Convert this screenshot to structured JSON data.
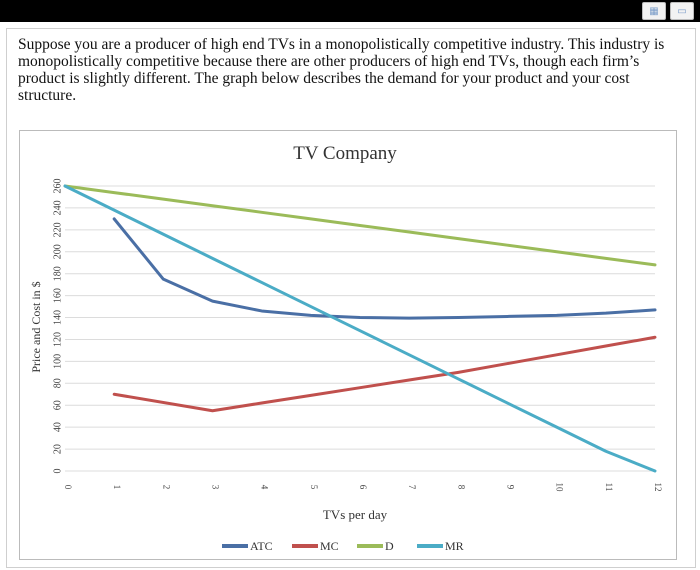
{
  "question": {
    "text": "Suppose you are a producer of high end TVs in a monopolistically competitive industry. This industry is monopolistically competitive because there are other producers of high end TVs, though each firm’s product is slightly different. The graph below describes the demand for your product and your cost structure."
  },
  "toolbar": {
    "icons": [
      "view-icon",
      "window-icon"
    ]
  },
  "chart_data": {
    "type": "line",
    "title": "TV Company",
    "xlabel": "TVs per day",
    "ylabel": "Price and Cost in $",
    "xlim": [
      0,
      12
    ],
    "ylim": [
      0,
      260
    ],
    "xticks": [
      "0",
      "1",
      "2",
      "3",
      "4",
      "5",
      "6",
      "7",
      "8",
      "9",
      "10",
      "11",
      "12"
    ],
    "yticks": [
      "0",
      "20",
      "40",
      "60",
      "80",
      "100",
      "120",
      "140",
      "160",
      "180",
      "200",
      "220",
      "240",
      "260"
    ],
    "grid": true,
    "legend_position": "bottom",
    "series": [
      {
        "name": "ATC",
        "color": "#4a6fa5",
        "points": [
          [
            1,
            230
          ],
          [
            2,
            175
          ],
          [
            3,
            155
          ],
          [
            4,
            146
          ],
          [
            5,
            142
          ],
          [
            6,
            140
          ],
          [
            7,
            139.5
          ],
          [
            8,
            140
          ],
          [
            9,
            141
          ],
          [
            10,
            142
          ],
          [
            11,
            144
          ],
          [
            12,
            147
          ]
        ]
      },
      {
        "name": "MC",
        "color": "#c0504d",
        "points": [
          [
            1,
            70
          ],
          [
            3,
            55
          ],
          [
            4,
            62
          ],
          [
            5,
            69
          ],
          [
            6,
            76
          ],
          [
            7,
            83
          ],
          [
            8,
            90
          ],
          [
            9,
            98
          ],
          [
            10,
            106
          ],
          [
            11,
            114
          ],
          [
            12,
            122
          ]
        ]
      },
      {
        "name": "D",
        "color": "#9bbb59",
        "points": [
          [
            0,
            260
          ],
          [
            1,
            254
          ],
          [
            2,
            248
          ],
          [
            3,
            242
          ],
          [
            4,
            236
          ],
          [
            5,
            230
          ],
          [
            6,
            224
          ],
          [
            7,
            218
          ],
          [
            8,
            212
          ],
          [
            9,
            206
          ],
          [
            10,
            200
          ],
          [
            11,
            194
          ],
          [
            12,
            188
          ]
        ]
      },
      {
        "name": "MR",
        "color": "#4bacc6",
        "points": [
          [
            0,
            260
          ],
          [
            1,
            238
          ],
          [
            2,
            216
          ],
          [
            3,
            194
          ],
          [
            4,
            172
          ],
          [
            5,
            150
          ],
          [
            6,
            128
          ],
          [
            7,
            106
          ],
          [
            8,
            84
          ],
          [
            9,
            62
          ],
          [
            10,
            40
          ],
          [
            11,
            18
          ],
          [
            12,
            0
          ]
        ]
      }
    ]
  }
}
